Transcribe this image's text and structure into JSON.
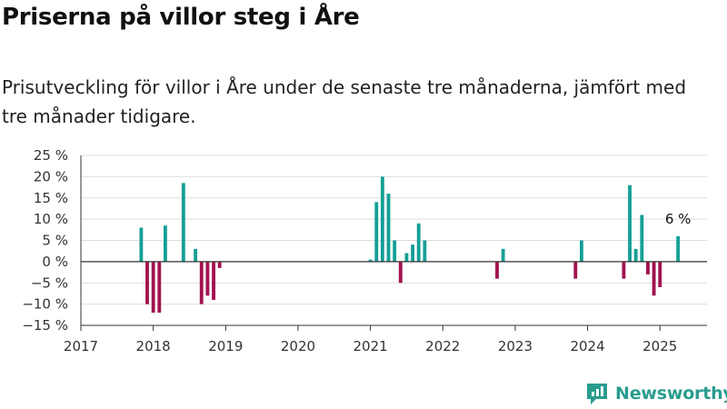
{
  "header": {
    "title": "Priserna på villor steg i Åre",
    "subtitle": "Prisutveckling för villor i Åre under de senaste tre månaderna, jämfört med tre månader tidigare."
  },
  "brand": {
    "name": "Newsworthy",
    "icon": "newsworthy-logo-icon"
  },
  "colors": {
    "positive": "#159f96",
    "negative": "#a3124f",
    "grid": "#dddddd",
    "axis": "#333333"
  },
  "chart_data": {
    "type": "bar",
    "title": "Priserna på villor steg i Åre",
    "xlabel": "",
    "ylabel": "",
    "ylim": [
      -15,
      25
    ],
    "xlim": [
      2017.0,
      2025.65
    ],
    "grid": true,
    "y_ticks": [
      {
        "value": 25,
        "label": "25 %"
      },
      {
        "value": 20,
        "label": "20 %"
      },
      {
        "value": 15,
        "label": "15 %"
      },
      {
        "value": 10,
        "label": "10 %"
      },
      {
        "value": 5,
        "label": "5 %"
      },
      {
        "value": 0,
        "label": "0 %"
      },
      {
        "value": -5,
        "label": "−5 %"
      },
      {
        "value": -10,
        "label": "−10 %"
      },
      {
        "value": -15,
        "label": "−15 %"
      }
    ],
    "x_ticks": [
      {
        "value": 2017,
        "label": "2017"
      },
      {
        "value": 2018,
        "label": "2018"
      },
      {
        "value": 2019,
        "label": "2019"
      },
      {
        "value": 2020,
        "label": "2020"
      },
      {
        "value": 2021,
        "label": "2021"
      },
      {
        "value": 2022,
        "label": "2022"
      },
      {
        "value": 2023,
        "label": "2023"
      },
      {
        "value": 2024,
        "label": "2024"
      },
      {
        "value": 2025,
        "label": "2025"
      }
    ],
    "series": [
      {
        "x": [
          "2017-11",
          "2017-12",
          "2018-01",
          "2018-02",
          "2018-03",
          "2018-06",
          "2018-08",
          "2018-09",
          "2018-10",
          "2018-11",
          "2018-12",
          "2021-01",
          "2021-02",
          "2021-03",
          "2021-04",
          "2021-05",
          "2021-06",
          "2021-07",
          "2021-08",
          "2021-09",
          "2021-10",
          "2022-10",
          "2022-11",
          "2023-11",
          "2023-12",
          "2024-07",
          "2024-08",
          "2024-09",
          "2024-10",
          "2024-11",
          "2024-12",
          "2025-01",
          "2025-04"
        ],
        "values": [
          8,
          -10,
          -12,
          -12,
          8.5,
          18.5,
          3,
          -10,
          -8,
          -9,
          -1.5,
          0.5,
          14,
          20,
          16,
          5,
          -5,
          2,
          4,
          9,
          5,
          -4,
          3,
          -4,
          5,
          -4,
          18,
          3,
          11,
          -3,
          -8,
          -6,
          6
        ]
      }
    ],
    "annotations": [
      {
        "label": "6 %",
        "x": "2025-04",
        "y": 6
      }
    ]
  }
}
